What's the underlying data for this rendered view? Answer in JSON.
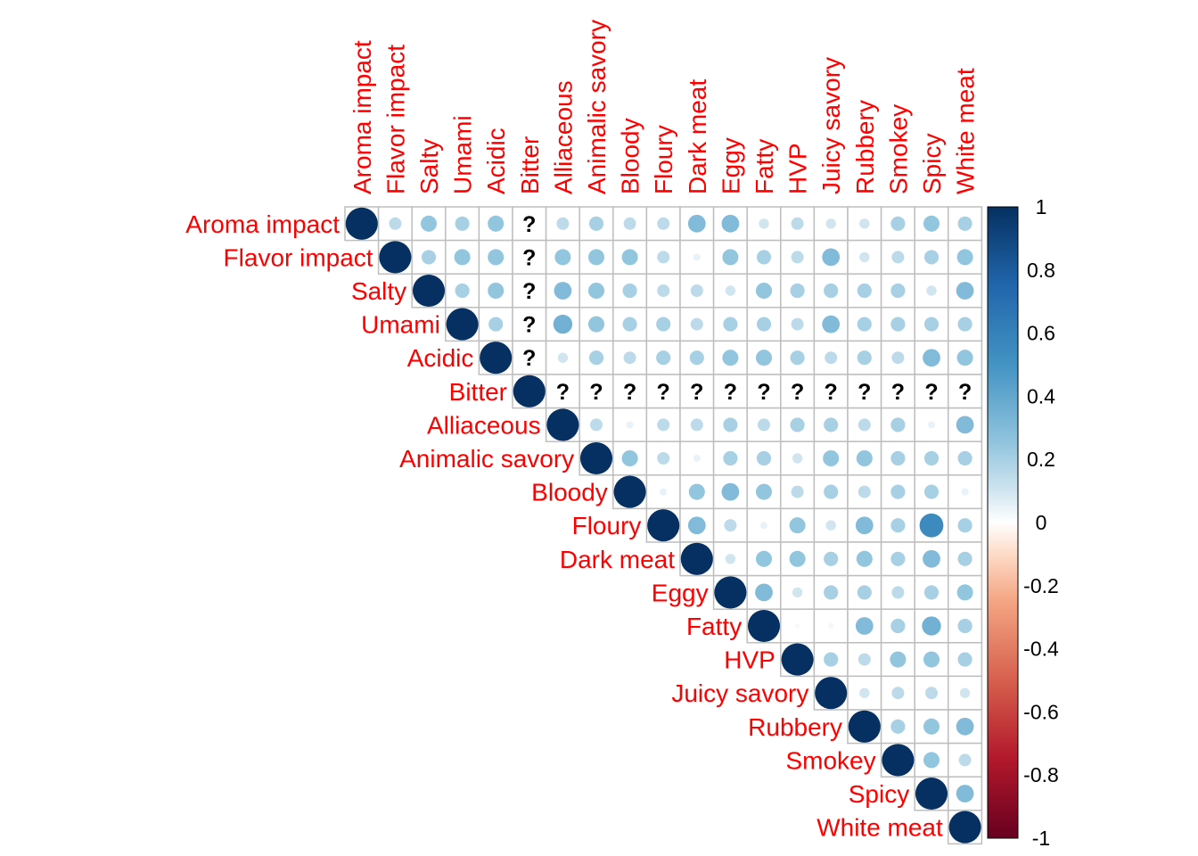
{
  "chart_data": {
    "type": "heatmap",
    "subtype": "corrplot-circle-upper",
    "variables": [
      "Aroma impact",
      "Flavor impact",
      "Salty",
      "Umami",
      "Acidic",
      "Bitter",
      "Alliaceous",
      "Animalic savory",
      "Bloody",
      "Floury",
      "Dark meat",
      "Eggy",
      "Fatty",
      "HVP",
      "Juicy savory",
      "Rubbery",
      "Smokey",
      "Spicy",
      "White meat"
    ],
    "matrix": [
      [
        1,
        0.15,
        0.25,
        0.2,
        0.25,
        null,
        0.15,
        0.2,
        0.15,
        0.15,
        0.3,
        0.3,
        0.1,
        0.15,
        0.1,
        0.1,
        0.2,
        0.25,
        0.2
      ],
      [
        null,
        1,
        0.2,
        0.25,
        0.25,
        null,
        0.25,
        0.25,
        0.25,
        0.15,
        0.05,
        0.25,
        0.2,
        0.15,
        0.3,
        0.1,
        0.15,
        0.2,
        0.25
      ],
      [
        null,
        null,
        1,
        0.2,
        0.25,
        null,
        0.3,
        0.25,
        0.2,
        0.15,
        0.15,
        0.1,
        0.25,
        0.2,
        0.2,
        0.2,
        0.2,
        0.1,
        0.3
      ],
      [
        null,
        null,
        null,
        1,
        0.2,
        null,
        0.35,
        0.25,
        0.2,
        0.2,
        0.15,
        0.2,
        0.2,
        0.15,
        0.3,
        0.2,
        0.2,
        0.2,
        0.2
      ],
      [
        null,
        null,
        null,
        null,
        1,
        null,
        0.1,
        0.2,
        0.15,
        0.2,
        0.2,
        0.25,
        0.25,
        0.2,
        0.15,
        0.2,
        0.15,
        0.3,
        0.25
      ],
      [
        null,
        null,
        null,
        null,
        null,
        1,
        null,
        null,
        null,
        null,
        null,
        null,
        null,
        null,
        null,
        null,
        null,
        null,
        null
      ],
      [
        null,
        null,
        null,
        null,
        null,
        null,
        1,
        0.15,
        0.05,
        0.15,
        0.15,
        0.2,
        0.15,
        0.2,
        0.2,
        0.15,
        0.2,
        0.05,
        0.3
      ],
      [
        null,
        null,
        null,
        null,
        null,
        null,
        null,
        1,
        0.25,
        0.15,
        0.05,
        0.2,
        0.2,
        0.1,
        0.25,
        0.25,
        0.2,
        0.2,
        0.2
      ],
      [
        null,
        null,
        null,
        null,
        null,
        null,
        null,
        null,
        1,
        0.05,
        0.25,
        0.3,
        0.25,
        0.15,
        0.2,
        0.15,
        0.2,
        0.2,
        0.05
      ],
      [
        null,
        null,
        null,
        null,
        null,
        null,
        null,
        null,
        null,
        1,
        0.3,
        0.15,
        0.05,
        0.25,
        0.1,
        0.3,
        0.2,
        0.55,
        0.2
      ],
      [
        null,
        null,
        null,
        null,
        null,
        null,
        null,
        null,
        null,
        null,
        1,
        0.1,
        0.25,
        0.25,
        0.2,
        0.25,
        0.2,
        0.3,
        0.2
      ],
      [
        null,
        null,
        null,
        null,
        null,
        null,
        null,
        null,
        null,
        null,
        null,
        1,
        0.3,
        0.1,
        0.2,
        0.2,
        0.15,
        0.2,
        0.25
      ],
      [
        null,
        null,
        null,
        null,
        null,
        null,
        null,
        null,
        null,
        null,
        null,
        null,
        1,
        0.02,
        0.03,
        0.3,
        0.2,
        0.35,
        0.2
      ],
      [
        null,
        null,
        null,
        null,
        null,
        null,
        null,
        null,
        null,
        null,
        null,
        null,
        null,
        1,
        0.2,
        0.15,
        0.25,
        0.25,
        0.2
      ],
      [
        null,
        null,
        null,
        null,
        null,
        null,
        null,
        null,
        null,
        null,
        null,
        null,
        null,
        null,
        1,
        0.1,
        0.15,
        0.15,
        0.1
      ],
      [
        null,
        null,
        null,
        null,
        null,
        null,
        null,
        null,
        null,
        null,
        null,
        null,
        null,
        null,
        null,
        1,
        0.2,
        0.25,
        0.3
      ],
      [
        null,
        null,
        null,
        null,
        null,
        null,
        null,
        null,
        null,
        null,
        null,
        null,
        null,
        null,
        null,
        null,
        1,
        0.25,
        0.15
      ],
      [
        null,
        null,
        null,
        null,
        null,
        null,
        null,
        null,
        null,
        null,
        null,
        null,
        null,
        null,
        null,
        null,
        null,
        1,
        0.3
      ],
      [
        null,
        null,
        null,
        null,
        null,
        null,
        null,
        null,
        null,
        null,
        null,
        null,
        null,
        null,
        null,
        null,
        null,
        null,
        1
      ]
    ],
    "missing_cells": [
      [
        0,
        5
      ],
      [
        1,
        5
      ],
      [
        2,
        5
      ],
      [
        3,
        5
      ],
      [
        4,
        5
      ],
      [
        5,
        6
      ],
      [
        5,
        7
      ],
      [
        5,
        8
      ],
      [
        5,
        9
      ],
      [
        5,
        10
      ],
      [
        5,
        11
      ],
      [
        5,
        12
      ],
      [
        5,
        13
      ],
      [
        5,
        14
      ],
      [
        5,
        15
      ],
      [
        5,
        16
      ],
      [
        5,
        17
      ],
      [
        5,
        18
      ]
    ],
    "missing_marker": "?",
    "colorbar": {
      "range": [
        -1,
        1
      ],
      "tick_labels": [
        "1",
        "0.8",
        "0.6",
        "0.4",
        "0.2",
        "0",
        "-0.2",
        "-0.4",
        "-0.6",
        "-0.8",
        "-1"
      ],
      "tick_values": [
        1,
        0.8,
        0.6,
        0.4,
        0.2,
        0,
        -0.2,
        -0.4,
        -0.6,
        -0.8,
        -1
      ],
      "stops": [
        {
          "v": -1,
          "c": "#67001F"
        },
        {
          "v": -0.75,
          "c": "#B2182B"
        },
        {
          "v": -0.5,
          "c": "#D6604D"
        },
        {
          "v": -0.25,
          "c": "#F4A582"
        },
        {
          "v": -0.1,
          "c": "#FDDBC7"
        },
        {
          "v": 0,
          "c": "#FFFFFF"
        },
        {
          "v": 0.1,
          "c": "#D1E5F0"
        },
        {
          "v": 0.25,
          "c": "#92C5DE"
        },
        {
          "v": 0.5,
          "c": "#4393C3"
        },
        {
          "v": 0.75,
          "c": "#2166AC"
        },
        {
          "v": 1,
          "c": "#053061"
        }
      ]
    },
    "label_color": "#FF0000",
    "grid_color": "#BEBEBE",
    "legend_position": "right"
  }
}
